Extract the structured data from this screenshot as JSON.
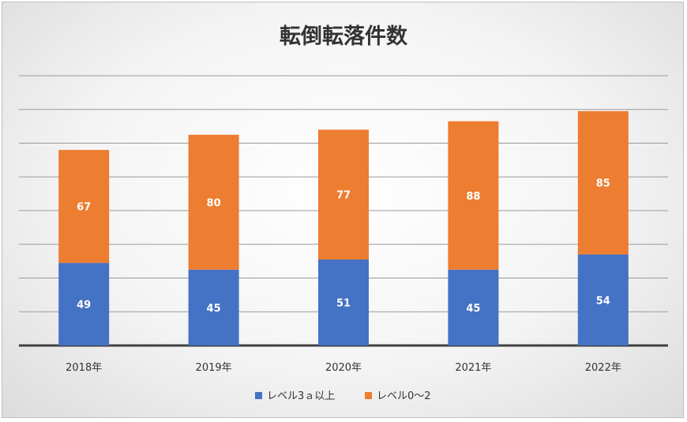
{
  "chart_data": {
    "type": "bar",
    "stacked": true,
    "title": "転倒転落件数",
    "xlabel": "",
    "ylabel": "",
    "categories": [
      "2018年",
      "2019年",
      "2020年",
      "2021年",
      "2022年"
    ],
    "series": [
      {
        "name": "レベル3ａ以上",
        "color": "#4472c4",
        "values": [
          49,
          45,
          51,
          45,
          54
        ]
      },
      {
        "name": "レベル0〜2",
        "color": "#ed7d31",
        "values": [
          67,
          80,
          77,
          88,
          85
        ]
      }
    ],
    "ylim": [
      0,
      160
    ],
    "grid": true,
    "show_y_tick_labels": false,
    "data_labels": true,
    "legend": "bottom"
  }
}
